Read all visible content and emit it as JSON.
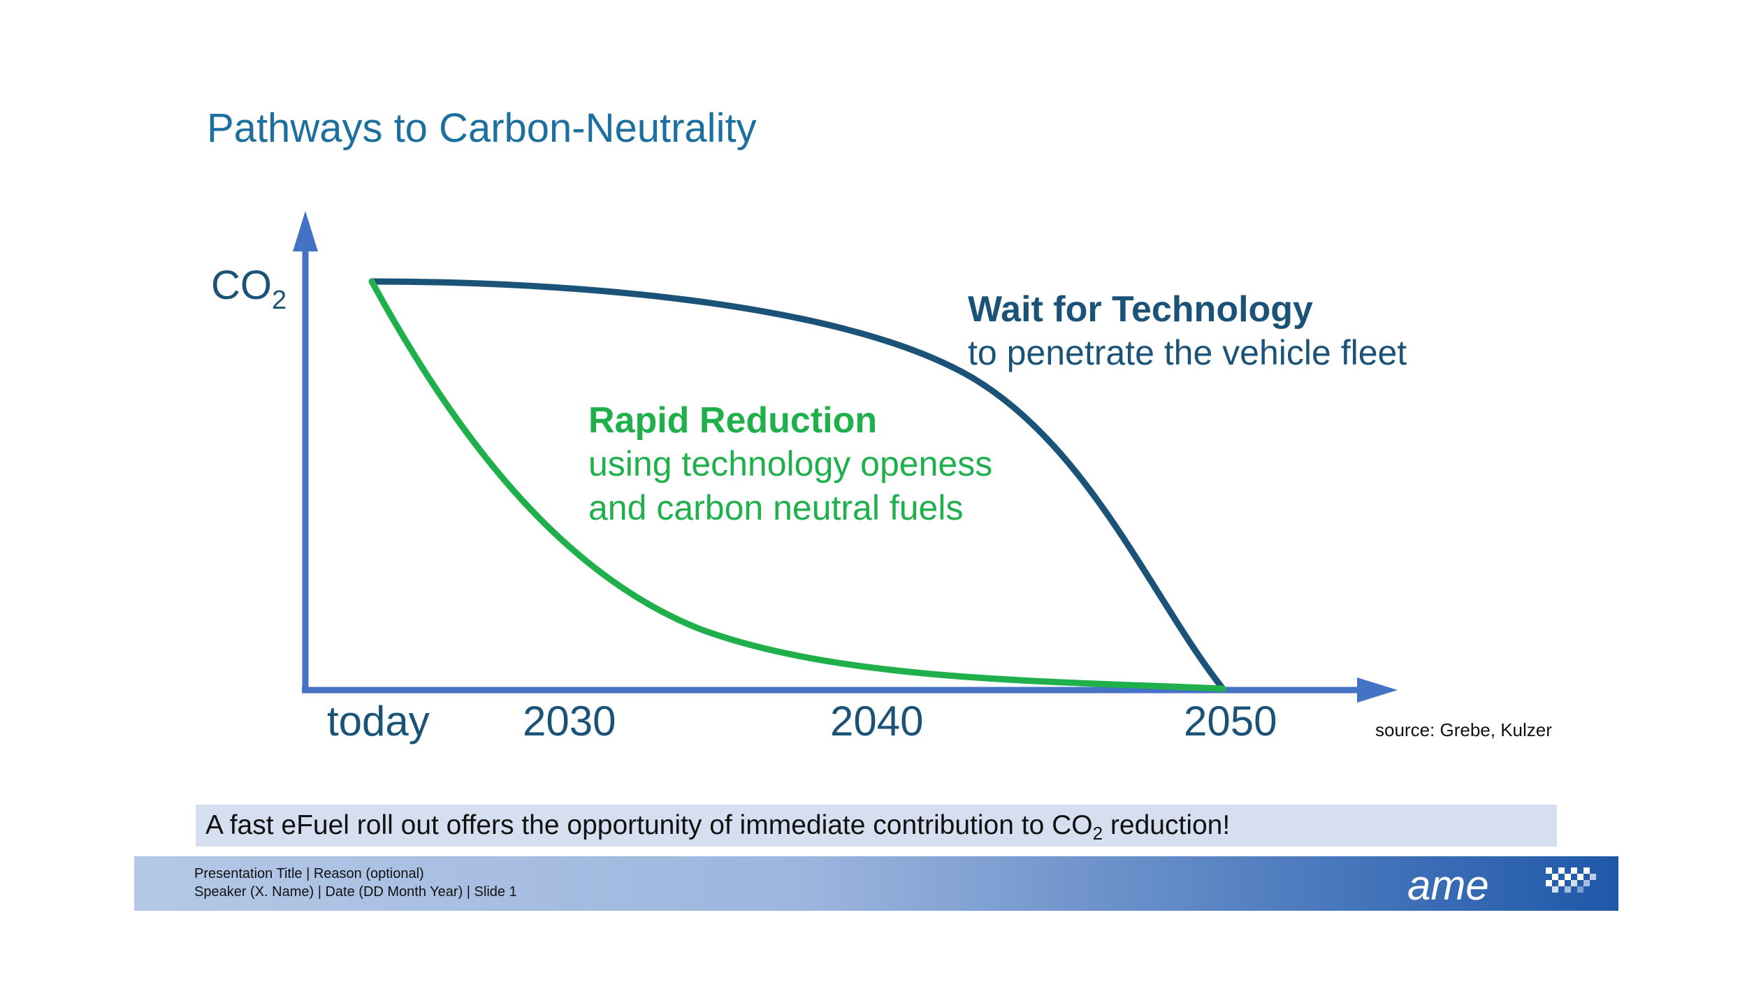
{
  "title": "Pathways to Carbon-Neutrality",
  "chart_data": {
    "type": "line",
    "ylabel": "CO",
    "ylabel_subscript": "2",
    "x_ticks": [
      "today",
      "2030",
      "2040",
      "2050"
    ],
    "series": [
      {
        "name": "Wait for Technology",
        "subtitle": "to penetrate the vehicle fleet",
        "color": "#1b5278",
        "points": [
          [
            0,
            1.0
          ],
          [
            0.4,
            0.9
          ],
          [
            0.7,
            0.72
          ],
          [
            0.9,
            0.4
          ],
          [
            1.0,
            0.0
          ]
        ]
      },
      {
        "name": "Rapid Reduction",
        "subtitle_lines": [
          "using technology openess",
          "and carbon neutral fuels"
        ],
        "color": "#1fb04c",
        "points": [
          [
            0,
            1.0
          ],
          [
            0.15,
            0.62
          ],
          [
            0.3,
            0.25
          ],
          [
            0.5,
            0.06
          ],
          [
            1.0,
            0.0
          ]
        ]
      }
    ],
    "axis_color": "#4472c4"
  },
  "source": "source: Grebe, Kulzer",
  "callout": {
    "before": "A fast eFuel roll out offers the opportunity of immediate contribution to CO",
    "subscript": "2",
    "after": " reduction!"
  },
  "footer": {
    "line1": "Presentation Title | Reason (optional)",
    "line2": "Speaker (X. Name) | Date (DD Month Year) | Slide 1",
    "logo_text": "ame"
  }
}
